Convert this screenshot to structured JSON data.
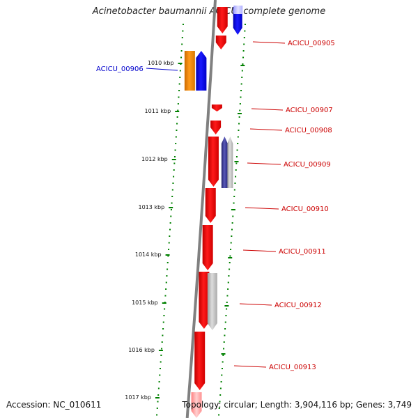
{
  "title": "Acinetobacter baumannii ACICU, complete genome",
  "footer": {
    "accession": "Accession: NC_010611",
    "summary": "Topology: circular; Length: 3,904,116 bp; Genes: 3,749"
  },
  "colors": {
    "forward_gene": "#ff0000",
    "reverse_gene": "#0000ff",
    "label_red": "#cc0000",
    "label_blue": "#0000cc",
    "ruler": "#008000",
    "backbone": "#808080",
    "rna_orange": "#ff8c00",
    "pseudo_gray": "#b0b0b0",
    "pseudo_navy": "#333399"
  },
  "axis": {
    "ticks": [
      "1010 kbp",
      "1011 kbp",
      "1012 kbp",
      "1013 kbp",
      "1014 kbp",
      "1015 kbp",
      "1016 kbp",
      "1017 kbp"
    ]
  },
  "labels": [
    {
      "text": "ACICU_00905",
      "color": "red"
    },
    {
      "text": "ACICU_00906",
      "color": "blue"
    },
    {
      "text": "ACICU_00907",
      "color": "red"
    },
    {
      "text": "ACICU_00908",
      "color": "red"
    },
    {
      "text": "ACICU_00909",
      "color": "red"
    },
    {
      "text": "ACICU_00910",
      "color": "red"
    },
    {
      "text": "ACICU_00911",
      "color": "red"
    },
    {
      "text": "ACICU_00912",
      "color": "red"
    },
    {
      "text": "ACICU_00913",
      "color": "red"
    }
  ]
}
